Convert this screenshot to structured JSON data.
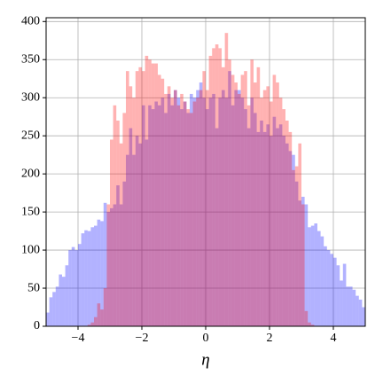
{
  "chart_data": {
    "type": "histogram",
    "xlabel": "η",
    "bins": [
      -5,
      -4.9,
      -4.8,
      -4.7,
      -4.6,
      -4.5,
      -4.4,
      -4.3,
      -4.2,
      -4.1,
      -4,
      -3.9,
      -3.8,
      -3.7,
      -3.6,
      -3.5,
      -3.4,
      -3.3,
      -3.2,
      -3.1,
      -3,
      -2.9,
      -2.8,
      -2.7,
      -2.6,
      -2.5,
      -2.4,
      -2.3,
      -2.2,
      -2.1,
      -2,
      -1.9,
      -1.8,
      -1.7,
      -1.6,
      -1.5,
      -1.4,
      -1.3,
      -1.2,
      -1.1,
      -1,
      -0.9,
      -0.8,
      -0.7,
      -0.6,
      -0.5,
      -0.4,
      -0.3,
      -0.2,
      -0.1,
      0,
      0.1,
      0.2,
      0.3,
      0.4,
      0.5,
      0.6,
      0.7,
      0.8,
      0.9,
      1,
      1.1,
      1.2,
      1.3,
      1.4,
      1.5,
      1.6,
      1.7,
      1.8,
      1.9,
      2,
      2.1,
      2.2,
      2.3,
      2.4,
      2.5,
      2.6,
      2.7,
      2.8,
      2.9,
      3,
      3.1,
      3.2,
      3.3,
      3.4,
      3.5,
      3.6,
      3.7,
      3.8,
      3.9,
      4,
      4.1,
      4.2,
      4.3,
      4.4,
      4.5,
      4.6,
      4.7,
      4.8,
      4.9,
      5
    ],
    "series": [
      {
        "color": "#0000ff",
        "values": [
          18,
          38,
          45,
          52,
          68,
          65,
          80,
          100,
          104,
          100,
          108,
          122,
          126,
          125,
          130,
          132,
          140,
          138,
          162,
          150,
          155,
          160,
          185,
          160,
          190,
          225,
          260,
          225,
          250,
          240,
          290,
          245,
          290,
          285,
          295,
          290,
          300,
          280,
          305,
          290,
          310,
          300,
          285,
          295,
          280,
          305,
          300,
          310,
          320,
          300,
          285,
          300,
          305,
          260,
          300,
          310,
          300,
          335,
          290,
          310,
          310,
          300,
          285,
          260,
          300,
          280,
          255,
          270,
          255,
          265,
          250,
          275,
          260,
          265,
          250,
          240,
          230,
          225,
          190,
          165,
          170,
          160,
          130,
          132,
          135,
          125,
          118,
          105,
          100,
          95,
          90,
          80,
          60,
          82,
          52,
          52,
          48,
          40,
          35,
          25
        ]
      },
      {
        "color": "#ff0000",
        "values": [
          0,
          0,
          0,
          0,
          0,
          0,
          0,
          0,
          0,
          0,
          0,
          0,
          0,
          2,
          5,
          12,
          30,
          22,
          50,
          160,
          245,
          290,
          270,
          240,
          280,
          335,
          315,
          300,
          335,
          340,
          335,
          355,
          350,
          345,
          345,
          330,
          325,
          305,
          315,
          300,
          310,
          290,
          305,
          295,
          285,
          280,
          295,
          300,
          310,
          335,
          310,
          355,
          365,
          370,
          365,
          340,
          385,
          350,
          330,
          320,
          305,
          330,
          335,
          290,
          350,
          320,
          340,
          300,
          310,
          315,
          295,
          330,
          320,
          300,
          285,
          270,
          255,
          205,
          210,
          240,
          160,
          20,
          5,
          2,
          0,
          0,
          0,
          0,
          0,
          0,
          0,
          0,
          0,
          0,
          0,
          0,
          0,
          0,
          0,
          0
        ]
      }
    ],
    "xlim": [
      -5,
      5
    ],
    "ylim": [
      0,
      405
    ],
    "xticks": [
      {
        "value": -4,
        "label": "−4"
      },
      {
        "value": -2,
        "label": "−2"
      },
      0,
      2,
      4
    ],
    "yticks": [
      0,
      50,
      100,
      150,
      200,
      250,
      300,
      350,
      400
    ],
    "grid": true
  }
}
